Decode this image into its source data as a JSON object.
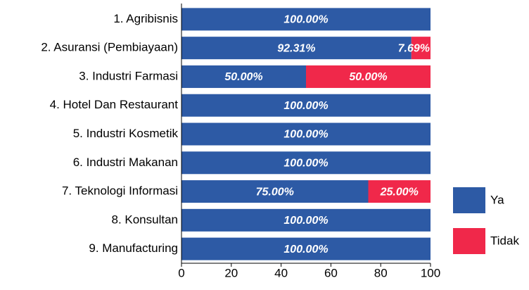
{
  "chart_data": {
    "type": "bar",
    "orientation": "horizontal",
    "stacked": true,
    "categories": [
      "1. Agribisnis",
      "2. Asuransi (Pembiayaan)",
      "3. Industri Farmasi",
      "4. Hotel Dan Restaurant",
      "5. Industri Kosmetik",
      "6. Industri Makanan",
      "7. Teknologi Informasi",
      "8. Konsultan",
      "9. Manufacturing"
    ],
    "series": [
      {
        "name": "Ya",
        "color": "#2d5aa5",
        "values": [
          100,
          92.31,
          50,
          100,
          100,
          100,
          75,
          100,
          100
        ],
        "value_labels": [
          "100.00%",
          "92.31%",
          "50.00%",
          "100.00%",
          "100.00%",
          "100.00%",
          "75.00%",
          "100.00%",
          "100.00%"
        ]
      },
      {
        "name": "Tidak",
        "color": "#f0284a",
        "values": [
          0,
          7.69,
          50,
          0,
          0,
          0,
          25,
          0,
          0
        ],
        "value_labels": [
          null,
          "7.69%",
          "50.00%",
          null,
          null,
          null,
          "25.00%",
          null,
          null
        ]
      }
    ],
    "xlim": [
      0,
      100
    ],
    "xticks": [
      0,
      20,
      40,
      60,
      80,
      100
    ],
    "legend": "right"
  }
}
